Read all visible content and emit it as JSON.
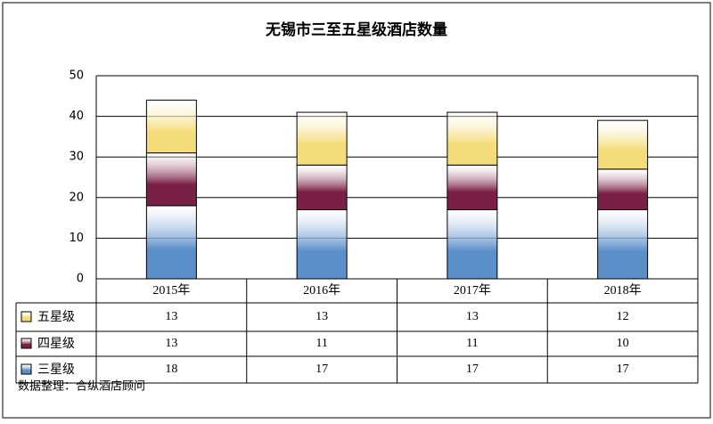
{
  "chart_data": {
    "type": "bar",
    "stacked": true,
    "title": "无锡市三至五星级酒店数量",
    "source": "数据整理：合纵酒店顾问",
    "categories": [
      "2015年",
      "2016年",
      "2017年",
      "2018年"
    ],
    "series": [
      {
        "name": "五星级",
        "color": "#f5dc7a",
        "values": [
          13,
          13,
          13,
          12
        ]
      },
      {
        "name": "四星级",
        "color": "#7a1f45",
        "values": [
          13,
          11,
          11,
          10
        ]
      },
      {
        "name": "三星级",
        "color": "#5b8fc9",
        "values": [
          18,
          17,
          17,
          17
        ]
      }
    ],
    "ylim": [
      0,
      50
    ],
    "yticks": [
      0,
      10,
      20,
      30,
      40,
      50
    ],
    "grid": true,
    "data_table": true
  }
}
